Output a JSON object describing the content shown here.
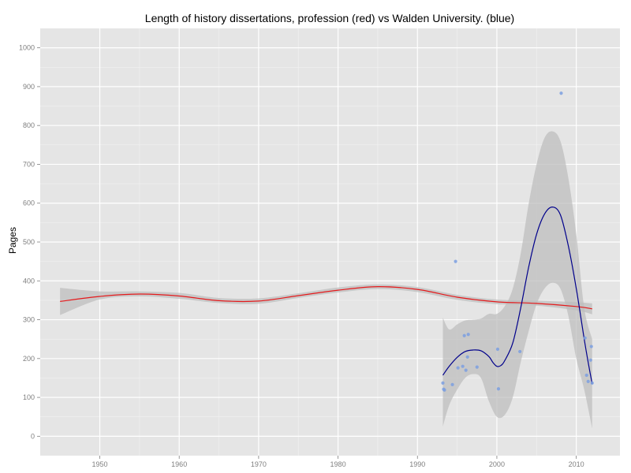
{
  "chart_data": {
    "type": "scatter",
    "title": "Length of history dissertations, profession (red) vs Walden University. (blue)",
    "xlabel": "",
    "ylabel": "Pages",
    "xlim": [
      1942.5,
      2015.5
    ],
    "ylim": [
      -50,
      1050
    ],
    "x_ticks": [
      1950,
      1960,
      1970,
      1980,
      1990,
      2000,
      2010
    ],
    "y_ticks": [
      0,
      100,
      200,
      300,
      400,
      500,
      600,
      700,
      800,
      900,
      1000
    ],
    "grid": true,
    "background": "panel-grey",
    "series": [
      {
        "color": "#e41a1c",
        "type": "smooth-line",
        "points": [
          [
            1945,
            347
          ],
          [
            1950,
            360
          ],
          [
            1955,
            366
          ],
          [
            1960,
            361
          ],
          [
            1965,
            349
          ],
          [
            1970,
            348
          ],
          [
            1975,
            362
          ],
          [
            1980,
            376
          ],
          [
            1985,
            385
          ],
          [
            1990,
            378
          ],
          [
            1995,
            358
          ],
          [
            2000,
            346
          ],
          [
            2005,
            342
          ],
          [
            2010,
            334
          ],
          [
            2012,
            328
          ]
        ],
        "band": [
          [
            1945,
            312,
            382
          ],
          [
            1950,
            352,
            373
          ],
          [
            1955,
            360,
            373
          ],
          [
            1960,
            354,
            369
          ],
          [
            1965,
            343,
            356
          ],
          [
            1970,
            341,
            355
          ],
          [
            1975,
            356,
            368
          ],
          [
            1980,
            370,
            383
          ],
          [
            1985,
            379,
            391
          ],
          [
            1990,
            371,
            384
          ],
          [
            1995,
            351,
            364
          ],
          [
            2000,
            340,
            352
          ],
          [
            2005,
            336,
            349
          ],
          [
            2010,
            324,
            345
          ],
          [
            2012,
            314,
            342
          ]
        ]
      },
      {
        "color": "#00008b",
        "type": "smooth-line",
        "points": [
          [
            1993.2,
            157
          ],
          [
            1994.0,
            180
          ],
          [
            1995.0,
            203
          ],
          [
            1996.0,
            218
          ],
          [
            1997.0,
            222
          ],
          [
            1998.0,
            220
          ],
          [
            1999.0,
            205
          ],
          [
            1999.5,
            190
          ],
          [
            2000.0,
            180
          ],
          [
            2000.5,
            182
          ],
          [
            2001.0,
            195
          ],
          [
            2002.0,
            240
          ],
          [
            2003.0,
            330
          ],
          [
            2004.0,
            435
          ],
          [
            2005.0,
            520
          ],
          [
            2006.0,
            572
          ],
          [
            2007.0,
            590
          ],
          [
            2008.0,
            570
          ],
          [
            2009.0,
            490
          ],
          [
            2010.0,
            380
          ],
          [
            2011.0,
            250
          ],
          [
            2011.5,
            190
          ],
          [
            2012.0,
            135
          ]
        ],
        "band": [
          [
            1993.2,
            25,
            305
          ],
          [
            1994.0,
            80,
            275
          ],
          [
            1995.0,
            120,
            288
          ],
          [
            1996.0,
            150,
            298
          ],
          [
            1997.0,
            160,
            300
          ],
          [
            1998.0,
            150,
            303
          ],
          [
            1999.0,
            90,
            315
          ],
          [
            2000.0,
            50,
            315
          ],
          [
            2001.0,
            55,
            335
          ],
          [
            2002.0,
            100,
            380
          ],
          [
            2003.0,
            190,
            470
          ],
          [
            2004.0,
            270,
            598
          ],
          [
            2005.0,
            340,
            700
          ],
          [
            2006.0,
            380,
            768
          ],
          [
            2007.0,
            395,
            785
          ],
          [
            2008.0,
            380,
            760
          ],
          [
            2009.0,
            310,
            665
          ],
          [
            2010.0,
            200,
            520
          ],
          [
            2011.0,
            120,
            330
          ],
          [
            2012.0,
            20,
            250
          ]
        ],
        "scatter": [
          [
            1993.2,
            137
          ],
          [
            1993.3,
            121
          ],
          [
            1993.4,
            119
          ],
          [
            1994.4,
            133
          ],
          [
            1994.8,
            450
          ],
          [
            1995.1,
            176
          ],
          [
            1995.7,
            180
          ],
          [
            1995.9,
            259
          ],
          [
            1996.1,
            170
          ],
          [
            1996.3,
            204
          ],
          [
            1996.4,
            262
          ],
          [
            1997.5,
            178
          ],
          [
            2000.1,
            224
          ],
          [
            2000.2,
            122
          ],
          [
            2002.9,
            218
          ],
          [
            2008.1,
            883
          ],
          [
            2011.1,
            253
          ],
          [
            2011.3,
            157
          ],
          [
            2011.5,
            141
          ],
          [
            2011.8,
            196
          ],
          [
            2011.9,
            231
          ],
          [
            2012.0,
            137
          ]
        ]
      }
    ]
  }
}
